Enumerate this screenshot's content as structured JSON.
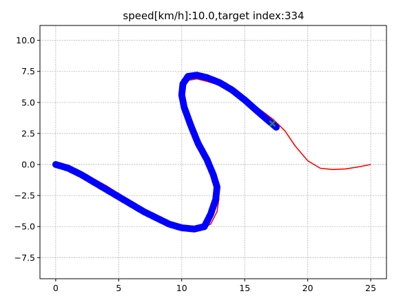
{
  "chart_data": {
    "type": "line",
    "title": "speed[km/h]:10.0,target index:334",
    "xlabel": "",
    "ylabel": "",
    "xlim": [
      -1.25,
      26.25
    ],
    "ylim": [
      -9.2,
      11.2
    ],
    "x_ticks": [
      0,
      5,
      10,
      15,
      20,
      25
    ],
    "y_ticks": [
      -7.5,
      -5.0,
      -2.5,
      0.0,
      2.5,
      5.0,
      7.5,
      10.0
    ],
    "x_tick_labels": [
      "0",
      "5",
      "10",
      "15",
      "20",
      "25"
    ],
    "y_tick_labels": [
      "−7.5",
      "−5.0",
      "−2.5",
      "0.0",
      "2.5",
      "5.0",
      "7.5",
      "10.0"
    ],
    "grid": true,
    "legend": "none",
    "series": [
      {
        "kind": "line",
        "color": "#ff0000",
        "x": [
          0,
          2,
          4,
          6,
          8,
          9.5,
          10.5,
          11.5,
          12.3,
          12.8,
          12.95,
          12.85,
          12.5,
          12.0,
          11.4,
          10.8,
          10.3,
          10.1,
          10.2,
          10.6,
          11.2,
          12.0,
          13.0,
          14.5,
          16.0,
          17.3,
          18.2,
          19.0,
          20.0,
          21.0,
          22.0,
          23.0,
          24.0,
          25.0
        ],
        "y": [
          0,
          -0.6,
          -1.7,
          -3.0,
          -4.1,
          -4.8,
          -5.1,
          -5.2,
          -4.8,
          -3.8,
          -2.8,
          -1.9,
          -0.9,
          0.3,
          1.7,
          3.2,
          4.6,
          5.6,
          6.4,
          6.8,
          6.9,
          6.7,
          6.4,
          5.7,
          4.6,
          3.6,
          2.7,
          1.5,
          0.3,
          -0.3,
          -0.4,
          -0.35,
          -0.2,
          0.0
        ]
      },
      {
        "kind": "scatter",
        "color": "#0000ff",
        "x": [
          0,
          1,
          2,
          3,
          4,
          5,
          6,
          7,
          8,
          9,
          10,
          11,
          11.8,
          12.3,
          12.7,
          12.8,
          12.5,
          12.0,
          11.3,
          10.7,
          10.2,
          10.0,
          10.1,
          10.5,
          11.2,
          12.0,
          13.0,
          14.0,
          15.0,
          16.0,
          16.8,
          17.5
        ],
        "y": [
          0,
          -0.3,
          -0.8,
          -1.4,
          -2.0,
          -2.6,
          -3.2,
          -3.8,
          -4.3,
          -4.8,
          -5.1,
          -5.2,
          -5.0,
          -4.0,
          -2.8,
          -1.8,
          -0.8,
          0.4,
          1.7,
          3.2,
          4.6,
          5.6,
          6.5,
          7.1,
          7.2,
          7.0,
          6.6,
          6.0,
          5.2,
          4.3,
          3.6,
          3.0
        ]
      },
      {
        "kind": "marker",
        "color": "#2e8b57",
        "x": [
          17.2
        ],
        "y": [
          3.3
        ]
      }
    ]
  }
}
